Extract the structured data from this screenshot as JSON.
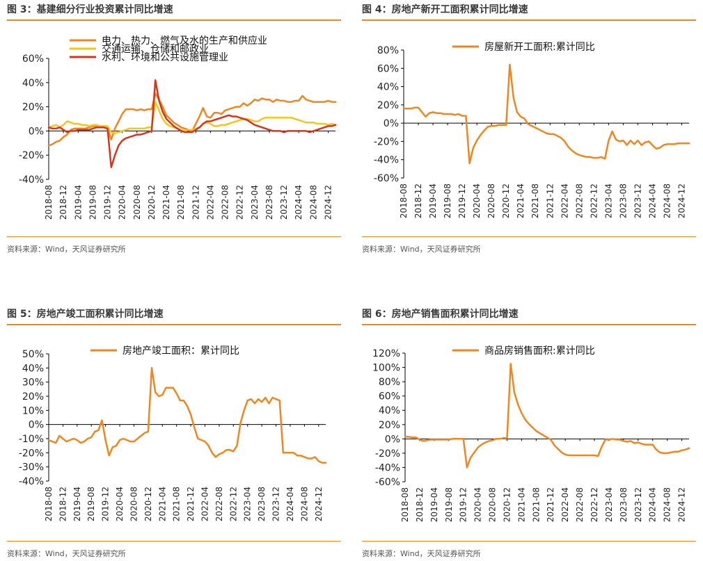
{
  "panels": [
    {
      "title": "图 3：基建细分行业投资累计同比增速",
      "source": "资料来源：Wind，天风证券研究所"
    },
    {
      "title": "图 4：房地产新开工面积累计同比增速",
      "source": "资料来源：Wind，天风证券研究所"
    },
    {
      "title": "图 5：房地产竣工面积累计同比增速",
      "source": "资料来源：Wind，天风证券研究所"
    },
    {
      "title": "图 6：房地产销售面积累计同比增速",
      "source": "资料来源：Wind，天风证券研究所"
    }
  ],
  "chart_data": [
    {
      "type": "line",
      "x_tick_labels": [
        "2018-08",
        "2018-12",
        "2019-04",
        "2019-08",
        "2019-12",
        "2020-04",
        "2020-08",
        "2020-12",
        "2021-04",
        "2021-08",
        "2021-12",
        "2022-04",
        "2022-08",
        "2022-12",
        "2023-04",
        "2023-08",
        "2023-12",
        "2024-04",
        "2024-08",
        "2024-12"
      ],
      "x_tick_every": 4,
      "y_tick_labels": [
        "60%",
        "40%",
        "20%",
        "0%",
        "-20%",
        "-40%"
      ],
      "ylim": [
        -40,
        60
      ],
      "y_ticks": [
        60,
        40,
        20,
        0,
        -20,
        -40
      ],
      "legend_position": "top",
      "series": [
        {
          "name": "电力、热力、燃气及水的生产和供应业",
          "color": "#f0861f",
          "values": [
            -12,
            -11,
            -9,
            -8,
            -5,
            -3,
            1,
            2,
            2,
            2,
            2,
            3,
            4,
            4,
            3,
            3,
            2,
            -7,
            2,
            8,
            14,
            18,
            18,
            18,
            17,
            18,
            17,
            18,
            18,
            31,
            26,
            20,
            13,
            10,
            7,
            5,
            3,
            2,
            1,
            0,
            6,
            12,
            19,
            12,
            11,
            15,
            15,
            14,
            17,
            18,
            19,
            20,
            20,
            23,
            21,
            23,
            26,
            25,
            27,
            26,
            26,
            24,
            26,
            25,
            25,
            24,
            24,
            25,
            25,
            29,
            26,
            25,
            24,
            24,
            24,
            24,
            25,
            24,
            24
          ]
        },
        {
          "name": "交通运输、仓储和邮政业",
          "color": "#f5c518",
          "values": [
            3,
            4,
            5,
            3,
            5,
            8,
            7,
            6,
            6,
            5,
            5,
            4,
            5,
            5,
            4,
            4,
            4,
            -1,
            -2,
            -1,
            0,
            1,
            2,
            2,
            2,
            2,
            2,
            3,
            3,
            24,
            17,
            10,
            6,
            4,
            3,
            2,
            1,
            0,
            1,
            1,
            2,
            3,
            6,
            7,
            6,
            4,
            4,
            5,
            5,
            6,
            7,
            8,
            9,
            10,
            10,
            9,
            8,
            8,
            10,
            11,
            11,
            11,
            11,
            11,
            11,
            11,
            11,
            10,
            9,
            8,
            7,
            7,
            7,
            6,
            6,
            6,
            5,
            6,
            5
          ]
        },
        {
          "name": "水利、环境和公共设施管理业",
          "color": "#d6351a",
          "values": [
            3,
            2,
            2,
            3,
            1,
            -1,
            0,
            0,
            1,
            1,
            1,
            1,
            2,
            3,
            3,
            3,
            2,
            -30,
            -20,
            -12,
            -8,
            -6,
            -5,
            -4,
            -3,
            -3,
            -2,
            -1,
            0,
            42,
            25,
            16,
            10,
            7,
            4,
            2,
            0,
            -1,
            -1,
            -1,
            1,
            3,
            6,
            8,
            8,
            9,
            10,
            11,
            12,
            13,
            12,
            12,
            11,
            10,
            9,
            7,
            5,
            4,
            3,
            2,
            1,
            0,
            0,
            0,
            -1,
            0,
            0,
            0,
            0,
            0,
            0,
            -1,
            0,
            1,
            2,
            3,
            4,
            4,
            5
          ]
        }
      ]
    },
    {
      "type": "line",
      "x_tick_labels": [
        "2018-08",
        "2018-12",
        "2019-04",
        "2019-08",
        "2019-12",
        "2020-04",
        "2020-08",
        "2020-12",
        "2021-04",
        "2021-08",
        "2021-12",
        "2022-04",
        "2022-08",
        "2022-12",
        "2023-04",
        "2023-08",
        "2023-12",
        "2024-04",
        "2024-08",
        "2024-12"
      ],
      "x_tick_every": 4,
      "y_tick_labels": [
        "80%",
        "60%",
        "40%",
        "20%",
        "0%",
        "-20%",
        "-40%",
        "-60%"
      ],
      "ylim": [
        -60,
        80
      ],
      "y_ticks": [
        80,
        60,
        40,
        20,
        0,
        -20,
        -40,
        -60
      ],
      "legend_position": "top",
      "series": [
        {
          "name": "房屋新开工面积:累计同比",
          "color": "#f0861f",
          "values": [
            16,
            16,
            16,
            17,
            17,
            12,
            7,
            11,
            12,
            11,
            11,
            10,
            10,
            10,
            9,
            10,
            8,
            8,
            -44,
            -27,
            -19,
            -13,
            -8,
            -4,
            -3,
            -3,
            -2,
            -2,
            -2,
            64,
            28,
            12,
            7,
            5,
            -1,
            -3,
            -5,
            -7,
            -9,
            -11,
            -12,
            -12,
            -14,
            -16,
            -20,
            -26,
            -30,
            -33,
            -35,
            -36,
            -37,
            -37,
            -38,
            -38,
            -37,
            -39,
            -19,
            -9,
            -18,
            -20,
            -19,
            -24,
            -19,
            -23,
            -19,
            -24,
            -21,
            -20,
            -24,
            -28,
            -27,
            -24,
            -23,
            -23,
            -23,
            -22,
            -22,
            -22,
            -22
          ]
        }
      ]
    },
    {
      "type": "line",
      "x_tick_labels": [
        "2018-08",
        "2018-12",
        "2019-04",
        "2019-08",
        "2019-12",
        "2020-04",
        "2020-08",
        "2020-12",
        "2021-04",
        "2021-08",
        "2021-12",
        "2022-04",
        "2022-08",
        "2022-12",
        "2023-04",
        "2023-08",
        "2023-12",
        "2024-04",
        "2024-08",
        "2024-12"
      ],
      "x_tick_every": 4,
      "y_tick_labels": [
        "50%",
        "40%",
        "30%",
        "20%",
        "10%",
        "0%",
        "-10%",
        "-20%",
        "-30%",
        "-40%"
      ],
      "ylim": [
        -40,
        50
      ],
      "y_ticks": [
        50,
        40,
        30,
        20,
        10,
        0,
        -10,
        -20,
        -30,
        -40
      ],
      "legend_position": "top",
      "series": [
        {
          "name": "房地产竣工面积：累计同比",
          "color": "#f0861f",
          "values": [
            -11,
            -12,
            -13,
            -8,
            -10,
            -12,
            -11,
            -10,
            -11,
            -13,
            -12,
            -10,
            -9,
            -5,
            -4,
            3,
            -11,
            -22,
            -16,
            -15,
            -11,
            -10,
            -11,
            -12,
            -12,
            -10,
            -8,
            -6,
            -5,
            40,
            23,
            20,
            21,
            26,
            26,
            26,
            22,
            17,
            17,
            13,
            7,
            -2,
            -10,
            -11,
            -12,
            -15,
            -20,
            -23,
            -21,
            -20,
            -18,
            -18,
            -19,
            -15,
            1,
            10,
            17,
            18,
            15,
            18,
            16,
            19,
            15,
            19,
            18,
            17,
            -20,
            -20,
            -20,
            -20,
            -22,
            -22,
            -23,
            -24,
            -24,
            -23,
            -26,
            -27,
            -27
          ]
        }
      ]
    },
    {
      "type": "line",
      "x_tick_labels": [
        "2018-08",
        "2018-12",
        "2019-04",
        "2019-08",
        "2019-12",
        "2020-04",
        "2020-08",
        "2020-12",
        "2021-04",
        "2021-08",
        "2021-12",
        "2022-04",
        "2022-08",
        "2022-12",
        "2023-04",
        "2023-08",
        "2023-12",
        "2024-04",
        "2024-08",
        "2024-12"
      ],
      "x_tick_every": 4,
      "y_tick_labels": [
        "120%",
        "100%",
        "80%",
        "60%",
        "40%",
        "20%",
        "0%",
        "-20%",
        "-40%",
        "-60%"
      ],
      "ylim": [
        -60,
        120
      ],
      "y_ticks": [
        120,
        100,
        80,
        60,
        40,
        20,
        0,
        -20,
        -40,
        -60
      ],
      "legend_position": "top",
      "series": [
        {
          "name": "商品房销售面积:累计同比",
          "color": "#f0861f",
          "values": [
            3,
            3,
            2,
            2,
            -1,
            -3,
            -2,
            -1,
            -1,
            -1,
            -1,
            -1,
            -1,
            0,
            0,
            0,
            0,
            -40,
            -26,
            -19,
            -12,
            -8,
            -5,
            -3,
            -2,
            0,
            0,
            1,
            1,
            105,
            65,
            48,
            36,
            27,
            21,
            16,
            11,
            8,
            5,
            2,
            -1,
            -9,
            -14,
            -19,
            -22,
            -23,
            -23,
            -23,
            -23,
            -23,
            -23,
            -23,
            -23,
            -24,
            -11,
            -1,
            -1,
            0,
            -1,
            -1,
            -3,
            -4,
            -3,
            -6,
            -5,
            -7,
            -8,
            -8,
            -8,
            -15,
            -19,
            -20,
            -20,
            -19,
            -18,
            -18,
            -16,
            -15,
            -13
          ]
        }
      ]
    }
  ]
}
